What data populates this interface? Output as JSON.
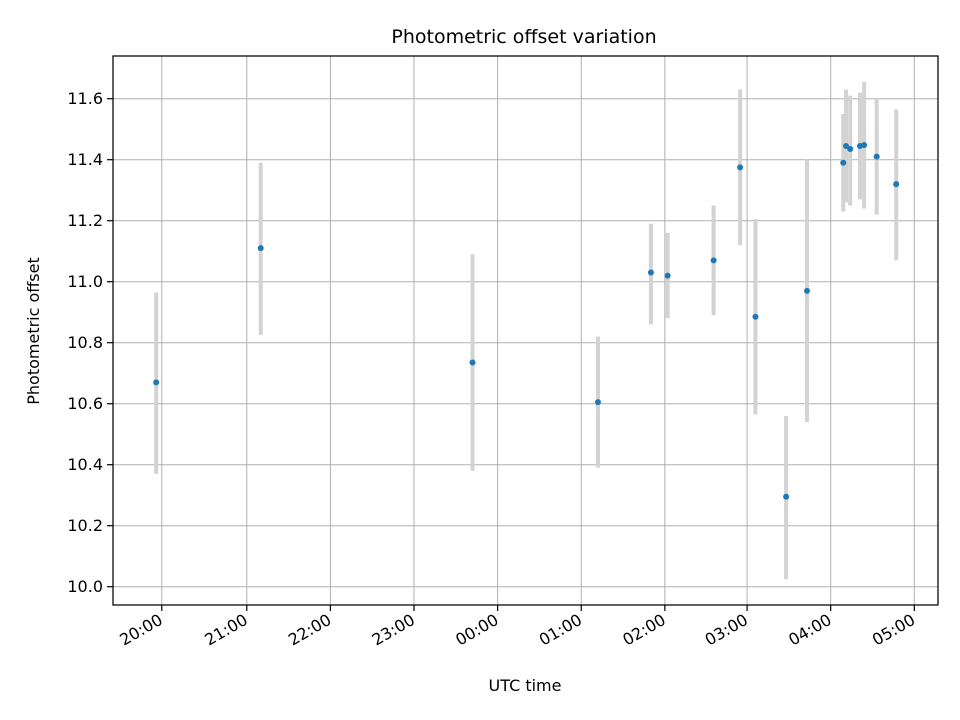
{
  "chart_data": {
    "type": "scatter",
    "title": "Photometric offset variation",
    "xlabel": "UTC time",
    "ylabel": "Photometric offset",
    "grid": true,
    "x_tick_labels": [
      "20:00",
      "21:00",
      "22:00",
      "23:00",
      "00:00",
      "01:00",
      "02:00",
      "03:00",
      "04:00",
      "05:00"
    ],
    "x_ticks": [
      "19:53",
      "20:54",
      "21:54",
      "22:54",
      "23:54",
      "00:54",
      "01:54",
      "02:53",
      "03:53",
      "04:53"
    ],
    "xlim": [
      "19:18",
      "05:10"
    ],
    "y_tick_labels": [
      "10.0",
      "10.2",
      "10.4",
      "10.6",
      "10.8",
      "11.0",
      "11.2",
      "11.4",
      "11.6"
    ],
    "ylim": [
      9.94,
      11.74
    ],
    "marker_color": "#1f77b4",
    "errorbar_color": "#d3d3d3",
    "points": [
      {
        "x": "19:49",
        "y": 10.67,
        "yerr_low": 10.37,
        "yerr_high": 10.965
      },
      {
        "x": "21:04",
        "y": 11.11,
        "yerr_low": 10.825,
        "yerr_high": 11.39
      },
      {
        "x": "23:36",
        "y": 10.735,
        "yerr_low": 10.38,
        "yerr_high": 11.09
      },
      {
        "x": "01:06",
        "y": 10.605,
        "yerr_low": 10.39,
        "yerr_high": 10.82
      },
      {
        "x": "01:44",
        "y": 11.03,
        "yerr_low": 10.86,
        "yerr_high": 11.19
      },
      {
        "x": "01:56",
        "y": 11.02,
        "yerr_low": 10.88,
        "yerr_high": 11.16
      },
      {
        "x": "02:29",
        "y": 11.07,
        "yerr_low": 10.89,
        "yerr_high": 11.25
      },
      {
        "x": "02:48",
        "y": 11.375,
        "yerr_low": 11.12,
        "yerr_high": 11.63
      },
      {
        "x": "02:59",
        "y": 10.885,
        "yerr_low": 10.565,
        "yerr_high": 11.205
      },
      {
        "x": "03:21",
        "y": 10.295,
        "yerr_low": 10.025,
        "yerr_high": 10.56
      },
      {
        "x": "03:36",
        "y": 10.97,
        "yerr_low": 10.54,
        "yerr_high": 11.4
      },
      {
        "x": "04:02",
        "y": 11.39,
        "yerr_low": 11.23,
        "yerr_high": 11.55
      },
      {
        "x": "04:04",
        "y": 11.445,
        "yerr_low": 11.26,
        "yerr_high": 11.63
      },
      {
        "x": "04:07",
        "y": 11.435,
        "yerr_low": 11.25,
        "yerr_high": 11.61
      },
      {
        "x": "04:14",
        "y": 11.445,
        "yerr_low": 11.27,
        "yerr_high": 11.62
      },
      {
        "x": "04:17",
        "y": 11.448,
        "yerr_low": 11.24,
        "yerr_high": 11.655
      },
      {
        "x": "04:26",
        "y": 11.41,
        "yerr_low": 11.22,
        "yerr_high": 11.6
      },
      {
        "x": "04:40",
        "y": 11.32,
        "yerr_low": 11.07,
        "yerr_high": 11.565
      }
    ]
  }
}
